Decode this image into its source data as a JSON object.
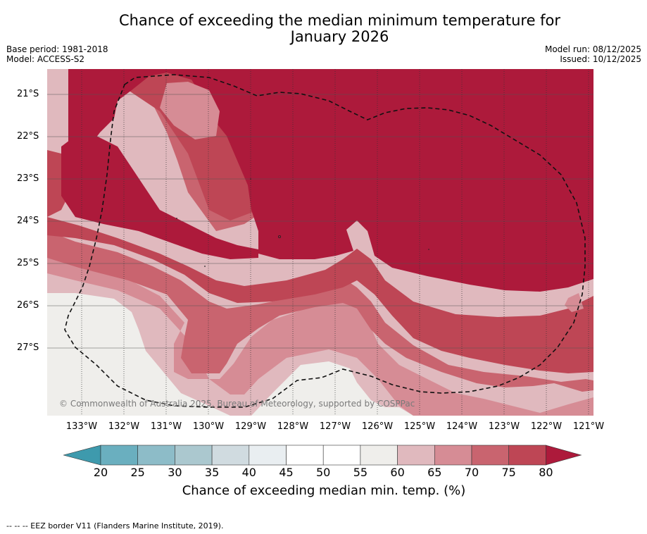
{
  "title_line1": "Chance of exceeding the median minimum temperature for",
  "title_line2": "January 2026",
  "meta": {
    "base_period": "Base period: 1981-2018",
    "model": "Model: ACCESS-S2",
    "model_run": "Model run: 08/12/2025",
    "issued": "Issued: 10/12/2025"
  },
  "map": {
    "lat_labels": [
      "21°S",
      "22°S",
      "23°S",
      "24°S",
      "25°S",
      "26°S",
      "27°S"
    ],
    "lon_labels": [
      "133°W",
      "132°W",
      "131°W",
      "130°W",
      "129°W",
      "128°W",
      "127°W",
      "126°W",
      "125°W",
      "124°W",
      "123°W",
      "122°W",
      "121°W"
    ],
    "copyright": "© Commonwealth of Australia 2025, Bureau of Meteorology, supported by COSPPac"
  },
  "colorbar": {
    "ticks": [
      "20",
      "25",
      "30",
      "35",
      "40",
      "45",
      "50",
      "55",
      "60",
      "65",
      "70",
      "75",
      "80"
    ],
    "colors": [
      "#3e9aad",
      "#6aafbf",
      "#8dbcc8",
      "#abc8cf",
      "#d0dbe0",
      "#e9eef1",
      "#ffffff",
      "#ffffff",
      "#efeeeb",
      "#e0b9be",
      "#d68c95",
      "#c9646f",
      "#be4655",
      "#ad1a3b"
    ],
    "label": "Chance of exceeding median min. temp. (%)"
  },
  "footnote": "--  --  -- EEZ border V11 (Flanders Marine Institute, 2019)."
}
